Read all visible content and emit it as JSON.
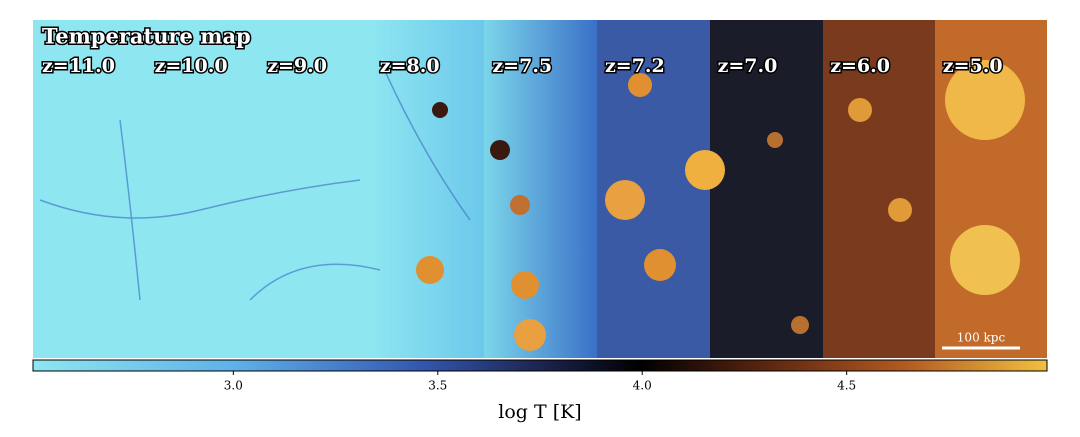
{
  "title": "Temperature map",
  "panels": [
    "z=11.0",
    "z=10.0",
    "z=9.0",
    "z=8.0",
    "z=7.5",
    "z=7.2",
    "z=7.0",
    "z=6.0",
    "z=5.0"
  ],
  "scale_bar": "100 kpc",
  "colorbar": {
    "label": "log T [K]",
    "lim": [
      2.51,
      4.99
    ],
    "ticks": [
      {
        "value": 3,
        "label": "3.0"
      },
      {
        "value": 3.5,
        "label": "3.5"
      },
      {
        "value": 4,
        "label": "4.0"
      },
      {
        "value": 4.5,
        "label": "4.5"
      }
    ]
  }
}
